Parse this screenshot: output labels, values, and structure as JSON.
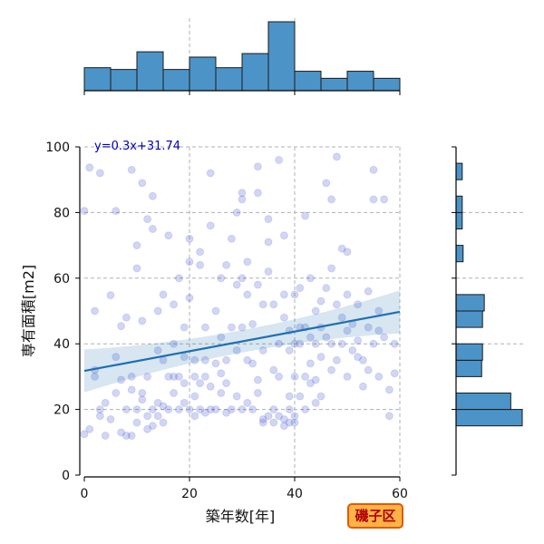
{
  "chart_data": {
    "type": "scatter",
    "xlabel": "築年数[年]",
    "ylabel": "専有面積[m2]",
    "xlim": [
      0,
      60
    ],
    "ylim": [
      0,
      100
    ],
    "xticks": [
      0,
      20,
      40,
      60
    ],
    "yticks": [
      0,
      20,
      40,
      60,
      80,
      100
    ],
    "grid": true,
    "regression": {
      "slope": 0.3,
      "intercept": 31.74,
      "label": "y=0.3x+31.74"
    },
    "badge": "磯子区",
    "points": [
      [
        0,
        12.5
      ],
      [
        0,
        80.5
      ],
      [
        1,
        93.7
      ],
      [
        2,
        50
      ],
      [
        2,
        32
      ],
      [
        3,
        92
      ],
      [
        3,
        20
      ],
      [
        4,
        22
      ],
      [
        4,
        12
      ],
      [
        5,
        17
      ],
      [
        5,
        54.8
      ],
      [
        6,
        80.5
      ],
      [
        6,
        25
      ],
      [
        7,
        13
      ],
      [
        7,
        45.4
      ],
      [
        8,
        48
      ],
      [
        8,
        20
      ],
      [
        8,
        12
      ],
      [
        9,
        93
      ],
      [
        9,
        12
      ],
      [
        9,
        26
      ],
      [
        10,
        20
      ],
      [
        10,
        70
      ],
      [
        10,
        63
      ],
      [
        10,
        16
      ],
      [
        11,
        89
      ],
      [
        11,
        47
      ],
      [
        11,
        23
      ],
      [
        12,
        78
      ],
      [
        12,
        30
      ],
      [
        12,
        18
      ],
      [
        13,
        20
      ],
      [
        13,
        15
      ],
      [
        13,
        85
      ],
      [
        13,
        75
      ],
      [
        14,
        22
      ],
      [
        14,
        50
      ],
      [
        14,
        18
      ],
      [
        15,
        55
      ],
      [
        15,
        35
      ],
      [
        15,
        16
      ],
      [
        16,
        73
      ],
      [
        16,
        30
      ],
      [
        16,
        20
      ],
      [
        17,
        40
      ],
      [
        17,
        52
      ],
      [
        17,
        25
      ],
      [
        18,
        60
      ],
      [
        18,
        30
      ],
      [
        18,
        20
      ],
      [
        19,
        28
      ],
      [
        19,
        36
      ],
      [
        19,
        45
      ],
      [
        20,
        72
      ],
      [
        20,
        65
      ],
      [
        20,
        20
      ],
      [
        20,
        54
      ],
      [
        21,
        35
      ],
      [
        21,
        30
      ],
      [
        21,
        18
      ],
      [
        22,
        64
      ],
      [
        22,
        68
      ],
      [
        22,
        28
      ],
      [
        22,
        20
      ],
      [
        23,
        30
      ],
      [
        23,
        45
      ],
      [
        23,
        35
      ],
      [
        24,
        92
      ],
      [
        24,
        76
      ],
      [
        24,
        20
      ],
      [
        25,
        20
      ],
      [
        25,
        50
      ],
      [
        25,
        34
      ],
      [
        26,
        60
      ],
      [
        26,
        42
      ],
      [
        26,
        25
      ],
      [
        27,
        64
      ],
      [
        27,
        35
      ],
      [
        27,
        28
      ],
      [
        28,
        72
      ],
      [
        28,
        45
      ],
      [
        28,
        20
      ],
      [
        29,
        80
      ],
      [
        29,
        58
      ],
      [
        29,
        38
      ],
      [
        30,
        86
      ],
      [
        30,
        84
      ],
      [
        30,
        60
      ],
      [
        30,
        45
      ],
      [
        30,
        20
      ],
      [
        31,
        55
      ],
      [
        31,
        35
      ],
      [
        31,
        65
      ],
      [
        32,
        46
      ],
      [
        32,
        34
      ],
      [
        32,
        20
      ],
      [
        33,
        94
      ],
      [
        33,
        86
      ],
      [
        33,
        58
      ],
      [
        33,
        25
      ],
      [
        34,
        52
      ],
      [
        34,
        38
      ],
      [
        34,
        17
      ],
      [
        35,
        78
      ],
      [
        35,
        71
      ],
      [
        35,
        62
      ],
      [
        35,
        18
      ],
      [
        36,
        52
      ],
      [
        36,
        20
      ],
      [
        36,
        32
      ],
      [
        37,
        96
      ],
      [
        37,
        40
      ],
      [
        37,
        30
      ],
      [
        38,
        73
      ],
      [
        38,
        55
      ],
      [
        38,
        48
      ],
      [
        38,
        15
      ],
      [
        39,
        44
      ],
      [
        39,
        38
      ],
      [
        39,
        20
      ],
      [
        39,
        16
      ],
      [
        40,
        40
      ],
      [
        40,
        30
      ],
      [
        40,
        55
      ],
      [
        40,
        18
      ],
      [
        41,
        57
      ],
      [
        41,
        40
      ],
      [
        41,
        24
      ],
      [
        42,
        79
      ],
      [
        42,
        45
      ],
      [
        42,
        30
      ],
      [
        43,
        60
      ],
      [
        43,
        42
      ],
      [
        43,
        34
      ],
      [
        44,
        50
      ],
      [
        44,
        40
      ],
      [
        44,
        29
      ],
      [
        45,
        53
      ],
      [
        45,
        45
      ],
      [
        45,
        36
      ],
      [
        46,
        89
      ],
      [
        46,
        57
      ],
      [
        46,
        42
      ],
      [
        47,
        84
      ],
      [
        47,
        63
      ],
      [
        47,
        40
      ],
      [
        48,
        97
      ],
      [
        48,
        52
      ],
      [
        48,
        35
      ],
      [
        49,
        69
      ],
      [
        49,
        48
      ],
      [
        49,
        40
      ],
      [
        50,
        68
      ],
      [
        50,
        55
      ],
      [
        50,
        30
      ],
      [
        51,
        46
      ],
      [
        51,
        38
      ],
      [
        52,
        52
      ],
      [
        52,
        41
      ],
      [
        53,
        35
      ],
      [
        53,
        27
      ],
      [
        54,
        56
      ],
      [
        54,
        45
      ],
      [
        55,
        84
      ],
      [
        55,
        93
      ],
      [
        55,
        40
      ],
      [
        56,
        50
      ],
      [
        56,
        44
      ],
      [
        56,
        30
      ],
      [
        57,
        84
      ],
      [
        57,
        42
      ],
      [
        58,
        18
      ],
      [
        58,
        26
      ],
      [
        59,
        31
      ],
      [
        59,
        40
      ],
      [
        1,
        14
      ],
      [
        2,
        30
      ],
      [
        3,
        18
      ],
      [
        6,
        36
      ],
      [
        7,
        29
      ],
      [
        9,
        30
      ],
      [
        11,
        25
      ],
      [
        12,
        14
      ],
      [
        14,
        38
      ],
      [
        15,
        21
      ],
      [
        17,
        30
      ],
      [
        19,
        22
      ],
      [
        21,
        24
      ],
      [
        23,
        19
      ],
      [
        24,
        27
      ],
      [
        26,
        31
      ],
      [
        27,
        19
      ],
      [
        29,
        24
      ],
      [
        31,
        22
      ],
      [
        33,
        29
      ],
      [
        34,
        16
      ],
      [
        36,
        16
      ],
      [
        37,
        18
      ],
      [
        38,
        17
      ],
      [
        39,
        24
      ],
      [
        40,
        16
      ],
      [
        41,
        45
      ],
      [
        42,
        20
      ],
      [
        43,
        28
      ],
      [
        44,
        22
      ],
      [
        45,
        24
      ],
      [
        47,
        32
      ],
      [
        50,
        44
      ],
      [
        52,
        36
      ],
      [
        54,
        32
      ]
    ]
  },
  "top_hist": {
    "bins": [
      0,
      5,
      10,
      15,
      20,
      25,
      30,
      35,
      40,
      45,
      50,
      55,
      60
    ],
    "counts": [
      13,
      12,
      22,
      12,
      19,
      13,
      21,
      39,
      11,
      7,
      11,
      7
    ]
  },
  "right_hist": {
    "bins": [
      0,
      5,
      10,
      15,
      20,
      25,
      30,
      35,
      40,
      45,
      50,
      55,
      60,
      65,
      70,
      75,
      80,
      85,
      90,
      95,
      100
    ],
    "counts": [
      0,
      0,
      0,
      75,
      62,
      0,
      29,
      30,
      0,
      30,
      32,
      0,
      0,
      8,
      0,
      7,
      7,
      0,
      7,
      0
    ]
  }
}
